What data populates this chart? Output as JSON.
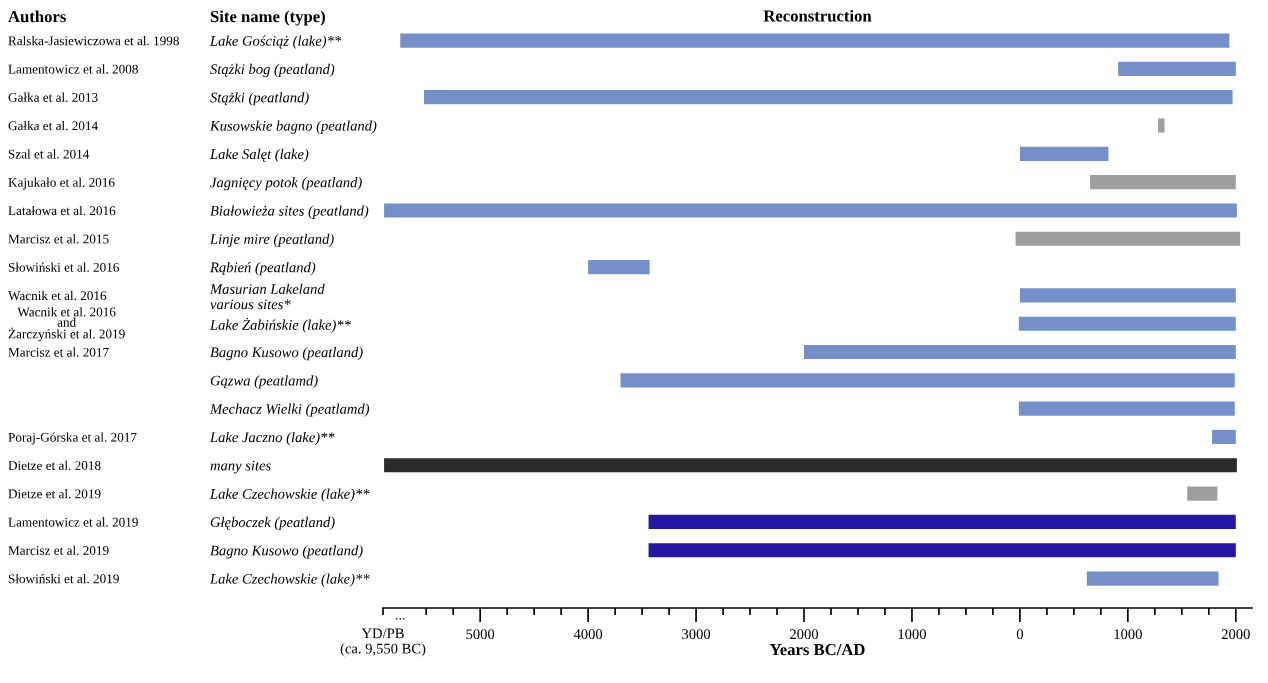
{
  "chart_data": {
    "type": "bar",
    "orientation": "horizontal",
    "title": "Reconstruction",
    "xlabel": "Years BC/AD",
    "categories": [
      "Lake Gościąż (lake)**",
      "Stążki bog (peatland)",
      "Stążki (peatland)",
      "Kusowskie bagno (peatland)",
      "Lake Salęt (lake)",
      "Jagnięcy potok (peatland)",
      "Białowieża sites (peatland)",
      "Linje mire (peatland)",
      "Rąbień (peatland)",
      "Masurian Lakeland\nvarious sites*",
      "Lake Żabińskie (lake)**",
      "Bagno Kusowo (peatland)",
      "Gązwa (peatlamd)",
      "Mechacz Wielki (peatlamd)",
      "Lake Jaczno (lake)**",
      "many sites",
      "Lake Czechowskie (lake)**",
      "Głęboczek (peatland)",
      "Bagno Kusowo (peatland)",
      "Lake Czechowskie (lake)**"
    ],
    "y2_categories": [
      "Ralska-Jasiewiczowa et al. 1998",
      "Lamentowicz et al. 2008",
      "Gałka et al. 2013",
      "Gałka et al. 2014",
      "Szal et al. 2014",
      "Kajukało et al. 2016",
      "Latałowa et al. 2016",
      "Marcisz et al. 2015",
      "Słowiński et al. 2016",
      "Wacnik et al. 2016",
      "Wacnik et al. 2016\nand\nŻarczyński et al. 2019",
      "Marcisz et al. 2017",
      null,
      null,
      "Poraj-Górska et al. 2017",
      "Dietze et al. 2018",
      "Dietze et al. 2019",
      "Lamentowicz et al. 2019",
      "Marcisz et al. 2019",
      "Słowiński et al. 2019"
    ],
    "base": [
      -5740,
      910,
      -5520,
      1280,
      0,
      650,
      -5890,
      -40,
      -4000,
      0,
      -10,
      -2000,
      -3700,
      -10,
      1780,
      -5890,
      1550,
      -3440,
      -3440,
      620
    ],
    "values": [
      7680,
      1090,
      7490,
      60,
      820,
      1350,
      7900,
      2080,
      570,
      2000,
      2010,
      4000,
      5690,
      2000,
      220,
      7900,
      280,
      5440,
      5440,
      1220
    ],
    "colors": [
      "#7590c9",
      "#7590c9",
      "#7590c9",
      "#9e9e9e",
      "#7590c9",
      "#9e9e9e",
      "#7590c9",
      "#9e9e9e",
      "#7590c9",
      "#7590c9",
      "#7590c9",
      "#7590c9",
      "#7590c9",
      "#7590c9",
      "#7590c9",
      "#2b2b2b",
      "#9e9e9e",
      "#2415a3",
      "#2415a3",
      "#7590c9"
    ],
    "xlim": [
      -5900,
      2150
    ],
    "xticks": [
      {
        "value": -5900,
        "label": null
      },
      {
        "value": -5500,
        "label": null
      },
      {
        "value": -5250,
        "label": null
      },
      {
        "value": -5000,
        "label": "5000"
      },
      {
        "value": -4750,
        "label": null
      },
      {
        "value": -4500,
        "label": null
      },
      {
        "value": -4250,
        "label": null
      },
      {
        "value": -4000,
        "label": "4000"
      },
      {
        "value": -3750,
        "label": null
      },
      {
        "value": -3500,
        "label": null
      },
      {
        "value": -3250,
        "label": null
      },
      {
        "value": -3000,
        "label": "3000"
      },
      {
        "value": -2750,
        "label": null
      },
      {
        "value": -2500,
        "label": null
      },
      {
        "value": -2250,
        "label": null
      },
      {
        "value": -2000,
        "label": "2000"
      },
      {
        "value": -1750,
        "label": null
      },
      {
        "value": -1500,
        "label": null
      },
      {
        "value": -1250,
        "label": null
      },
      {
        "value": -1000,
        "label": "1000"
      },
      {
        "value": -750,
        "label": null
      },
      {
        "value": -500,
        "label": null
      },
      {
        "value": -250,
        "label": null
      },
      0,
      {
        "value": 250,
        "label": null
      },
      {
        "value": 500,
        "label": null
      },
      {
        "value": 750,
        "label": null
      },
      1000,
      {
        "value": 1250,
        "label": null
      },
      {
        "value": 1500,
        "label": null
      },
      {
        "value": 1750,
        "label": null
      },
      2000
    ],
    "annotations": [
      "Authors",
      "Site name (type)",
      "...",
      "YD/PB\n(ca. 9,550 BC)"
    ],
    "grid": false,
    "legend": false
  }
}
